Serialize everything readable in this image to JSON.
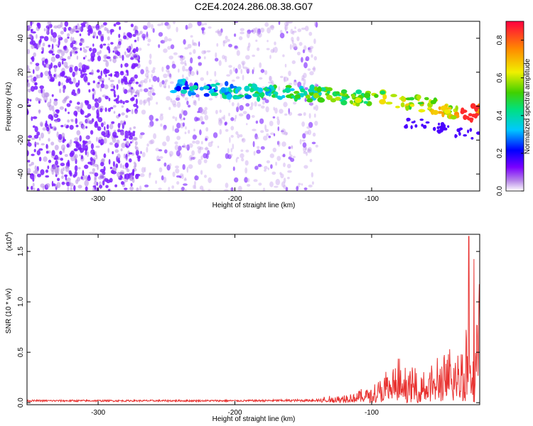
{
  "title": "C2E4.2024.286.08.38.G07",
  "chart_data": [
    {
      "type": "heatmap",
      "xlabel": "Height of straight line (km)",
      "ylabel": "Frequency (Hz)",
      "xlim": [
        -352,
        -21
      ],
      "ylim": [
        -50,
        50
      ],
      "x_ticks": [
        -300,
        -200,
        -100
      ],
      "y_ticks": [
        -40,
        -20,
        0,
        20,
        40
      ],
      "colorbar": {
        "label": "Normalized spectral amplitude",
        "range": [
          0.0,
          0.9
        ],
        "ticks": [
          "0.0",
          "0.2",
          "0.4",
          "0.6",
          "0.8"
        ]
      },
      "trace": {
        "description_points_x": [
          -245,
          -215,
          -200,
          -180,
          -160,
          -140,
          -125,
          -110,
          -100,
          -85,
          -70,
          -55,
          -40,
          -28,
          -22
        ],
        "description_points_y": [
          12,
          10,
          9,
          8,
          8,
          7,
          6,
          5,
          5,
          4,
          2,
          0,
          -3,
          -5,
          -2
        ],
        "start_x": -245,
        "max_amplitude_x": -28
      },
      "noise_regions": [
        {
          "x_range": [
            -352,
            -270
          ],
          "density": "high"
        },
        {
          "x_range": [
            -270,
            -140
          ],
          "density": "medium"
        }
      ]
    },
    {
      "type": "line",
      "xlabel": "Height of straight line (km)",
      "ylabel": "SNR (10 * v/v)",
      "y_scale_label": "(x10",
      "y_scale_exponent": "4",
      "xlim": [
        -352,
        -21
      ],
      "ylim": [
        -0.02,
        1.67
      ],
      "x_ticks": [
        -300,
        -200,
        -100
      ],
      "y_ticks": [
        "0.0",
        "0.5",
        "1.0",
        "1.5"
      ],
      "color": "#e8312f",
      "envelope": {
        "x": [
          -352,
          -300,
          -250,
          -200,
          -150,
          -130,
          -110,
          -100,
          -90,
          -80,
          -70,
          -60,
          -50,
          -40,
          -35,
          -30,
          -25,
          -21
        ],
        "y": [
          0.03,
          0.03,
          0.03,
          0.03,
          0.04,
          0.06,
          0.12,
          0.18,
          0.28,
          0.38,
          0.32,
          0.36,
          0.42,
          0.5,
          0.62,
          0.8,
          1.2,
          1.25
        ]
      },
      "peak": {
        "x": -29,
        "y": 1.65
      }
    }
  ]
}
